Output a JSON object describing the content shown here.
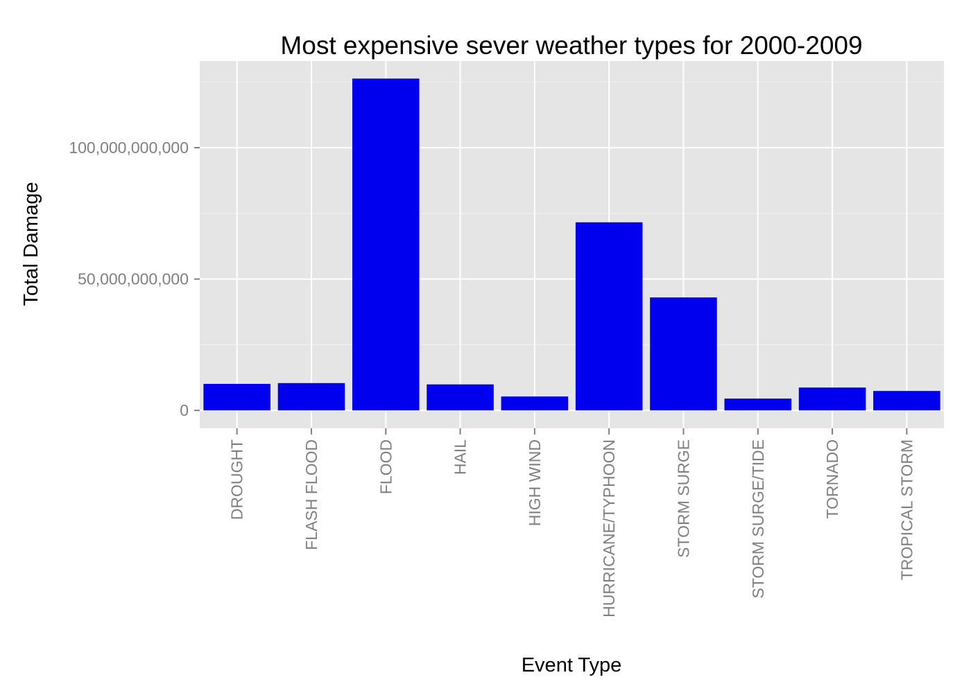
{
  "chart_data": {
    "type": "bar",
    "title": "Most expensive sever weather types for 2000-2009",
    "xlabel": "Event Type",
    "ylabel": "Total Damage",
    "categories": [
      "DROUGHT",
      "FLASH FLOOD",
      "FLOOD",
      "HAIL",
      "HIGH WIND",
      "HURRICANE/TYPHOON",
      "STORM SURGE",
      "STORM SURGE/TIDE",
      "TORNADO",
      "TROPICAL STORM"
    ],
    "values": [
      10100000000,
      10400000000,
      126300000000,
      9900000000,
      5300000000,
      71600000000,
      43000000000,
      4500000000,
      8700000000,
      7400000000
    ],
    "ylim": [
      -6800000000,
      133000000000
    ],
    "y_ticks": [
      0,
      50000000000,
      100000000000
    ],
    "y_tick_labels": [
      "0",
      "50,000,000,000",
      "100,000,000,000"
    ],
    "grid": true,
    "legend": "none",
    "colors": {
      "bar": "#0000ee",
      "panel": "#e5e5e5",
      "grid_major": "#ffffff",
      "grid_minor": "#f2f2f2",
      "tick_text": "#7f7f7f",
      "title_text": "#000000"
    }
  }
}
